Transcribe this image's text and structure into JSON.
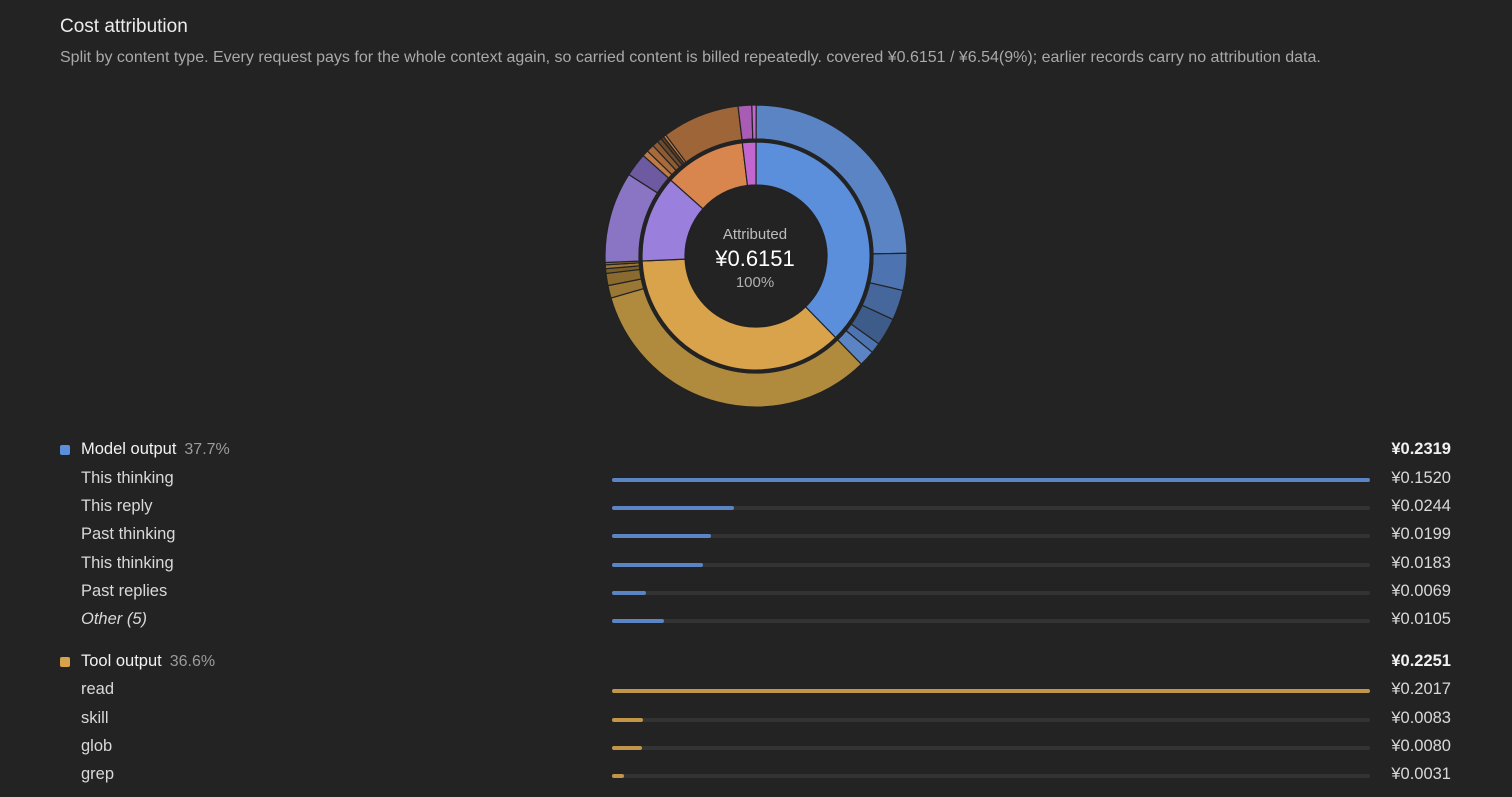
{
  "header": {
    "title": "Cost attribution",
    "subtitle": "Split by content type. Every request pays for the whole context again, so carried content is billed repeatedly. covered ¥0.6151 / ¥6.54(9%); earlier records carry no attribution data."
  },
  "center": {
    "label": "Attributed",
    "value": "¥0.6151",
    "percent": "100%"
  },
  "colors": {
    "model_output": "#5b8fdc",
    "model_output_bar": "#5a84c4",
    "tool_output": "#d8a34b",
    "tool_output_bar": "#c29549",
    "purple": "#9b7fdc",
    "orange": "#d9864e",
    "magenta": "#c367d0",
    "background": "#232323"
  },
  "groups": [
    {
      "name": "Model output",
      "percent": "37.7%",
      "value": "¥0.2319",
      "color_key": "model_output",
      "rows": [
        {
          "name": "This thinking",
          "value": "¥0.1520",
          "amount": 0.152
        },
        {
          "name": "This reply",
          "value": "¥0.0244",
          "amount": 0.0244
        },
        {
          "name": "Past thinking",
          "value": "¥0.0199",
          "amount": 0.0199
        },
        {
          "name": "This thinking",
          "value": "¥0.0183",
          "amount": 0.0183
        },
        {
          "name": "Past replies",
          "value": "¥0.0069",
          "amount": 0.0069
        },
        {
          "name": "Other (5)",
          "value": "¥0.0105",
          "amount": 0.0105,
          "italic": true
        }
      ]
    },
    {
      "name": "Tool output",
      "percent": "36.6%",
      "value": "¥0.2251",
      "color_key": "tool_output",
      "rows": [
        {
          "name": "read",
          "value": "¥0.2017",
          "amount": 0.2017
        },
        {
          "name": "skill",
          "value": "¥0.0083",
          "amount": 0.0083
        },
        {
          "name": "glob",
          "value": "¥0.0080",
          "amount": 0.008
        },
        {
          "name": "grep",
          "value": "¥0.0031",
          "amount": 0.0031
        }
      ]
    }
  ],
  "chart_data": {
    "type": "sunburst",
    "total": 0.6151,
    "inner": [
      {
        "name": "Model output",
        "value": 0.2319,
        "color": "#5b8fdc"
      },
      {
        "name": "Tool output",
        "value": 0.2251,
        "color": "#d8a34b"
      },
      {
        "name": "",
        "value": 0.0755,
        "color": "#9b7fdc"
      },
      {
        "name": "",
        "value": 0.0708,
        "color": "#d9864e"
      },
      {
        "name": "",
        "value": 0.0118,
        "color": "#c367d0"
      }
    ],
    "outer": [
      {
        "parent": 0,
        "value": 0.152,
        "color": "#5a84c4"
      },
      {
        "parent": 0,
        "value": 0.0244,
        "color": "#4d74b0"
      },
      {
        "parent": 0,
        "value": 0.0199,
        "color": "#45679c"
      },
      {
        "parent": 0,
        "value": 0.0183,
        "color": "#3e5c8a"
      },
      {
        "parent": 0,
        "value": 0.0069,
        "color": "#4d74b0"
      },
      {
        "parent": 0,
        "value": 0.0105,
        "color": "#5a84c4"
      },
      {
        "parent": 1,
        "value": 0.2017,
        "color": "#b08a3d"
      },
      {
        "parent": 1,
        "value": 0.0083,
        "color": "#9a7734"
      },
      {
        "parent": 1,
        "value": 0.008,
        "color": "#8a6a2e"
      },
      {
        "parent": 1,
        "value": 0.0031,
        "color": "#7a5e29"
      },
      {
        "parent": 1,
        "value": 0.0025,
        "color": "#9a7734"
      },
      {
        "parent": 1,
        "value": 0.0015,
        "color": "#8a6a2e"
      },
      {
        "parent": 2,
        "value": 0.06,
        "color": "#8a74c4"
      },
      {
        "parent": 2,
        "value": 0.0155,
        "color": "#6d5aa0"
      },
      {
        "parent": 3,
        "value": 0.004,
        "color": "#c07a44"
      },
      {
        "parent": 3,
        "value": 0.005,
        "color": "#a86a3a"
      },
      {
        "parent": 3,
        "value": 0.004,
        "color": "#8e5a32"
      },
      {
        "parent": 3,
        "value": 0.003,
        "color": "#6e4a2c"
      },
      {
        "parent": 3,
        "value": 0.002,
        "color": "#5a3e26"
      },
      {
        "parent": 3,
        "value": 0.0018,
        "color": "#c07a44"
      },
      {
        "parent": 3,
        "value": 0.051,
        "color": "#9e6538"
      },
      {
        "parent": 4,
        "value": 0.009,
        "color": "#a85cb4"
      },
      {
        "parent": 4,
        "value": 0.0028,
        "color": "#c367d0"
      }
    ]
  }
}
